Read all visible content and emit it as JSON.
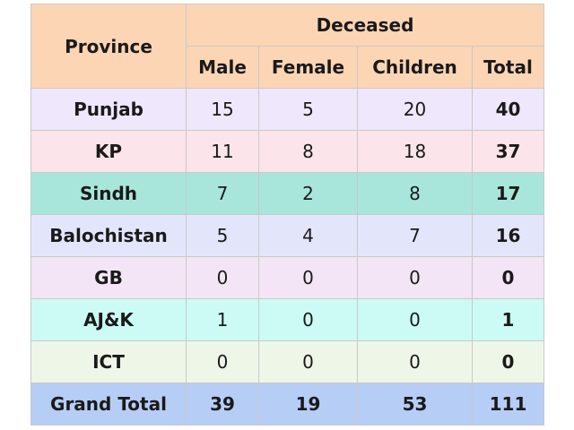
{
  "table": {
    "header": {
      "province": "Province",
      "group": "Deceased",
      "columns": [
        "Male",
        "Female",
        "Children",
        "Total"
      ],
      "bg": "#fcd5b4"
    },
    "rows": [
      {
        "province": "Punjab",
        "male": "15",
        "female": "5",
        "children": "20",
        "total": "40",
        "bg": "#efe7fb"
      },
      {
        "province": "KP",
        "male": "11",
        "female": "8",
        "children": "18",
        "total": "37",
        "bg": "#fbe4ea"
      },
      {
        "province": "Sindh",
        "male": "7",
        "female": "2",
        "children": "8",
        "total": "17",
        "bg": "#a8e6dc"
      },
      {
        "province": "Balochistan",
        "male": "5",
        "female": "4",
        "children": "7",
        "total": "16",
        "bg": "#e3e6fb"
      },
      {
        "province": "GB",
        "male": "0",
        "female": "0",
        "children": "0",
        "total": "0",
        "bg": "#f3e5f5"
      },
      {
        "province": "AJ&K",
        "male": "1",
        "female": "0",
        "children": "0",
        "total": "1",
        "bg": "#ccfbf5"
      },
      {
        "province": "ICT",
        "male": "0",
        "female": "0",
        "children": "0",
        "total": "0",
        "bg": "#eef6e8"
      }
    ],
    "grand_total": {
      "label": "Grand Total",
      "male": "39",
      "female": "19",
      "children": "53",
      "total": "111",
      "bg": "#b6cdf5"
    }
  }
}
